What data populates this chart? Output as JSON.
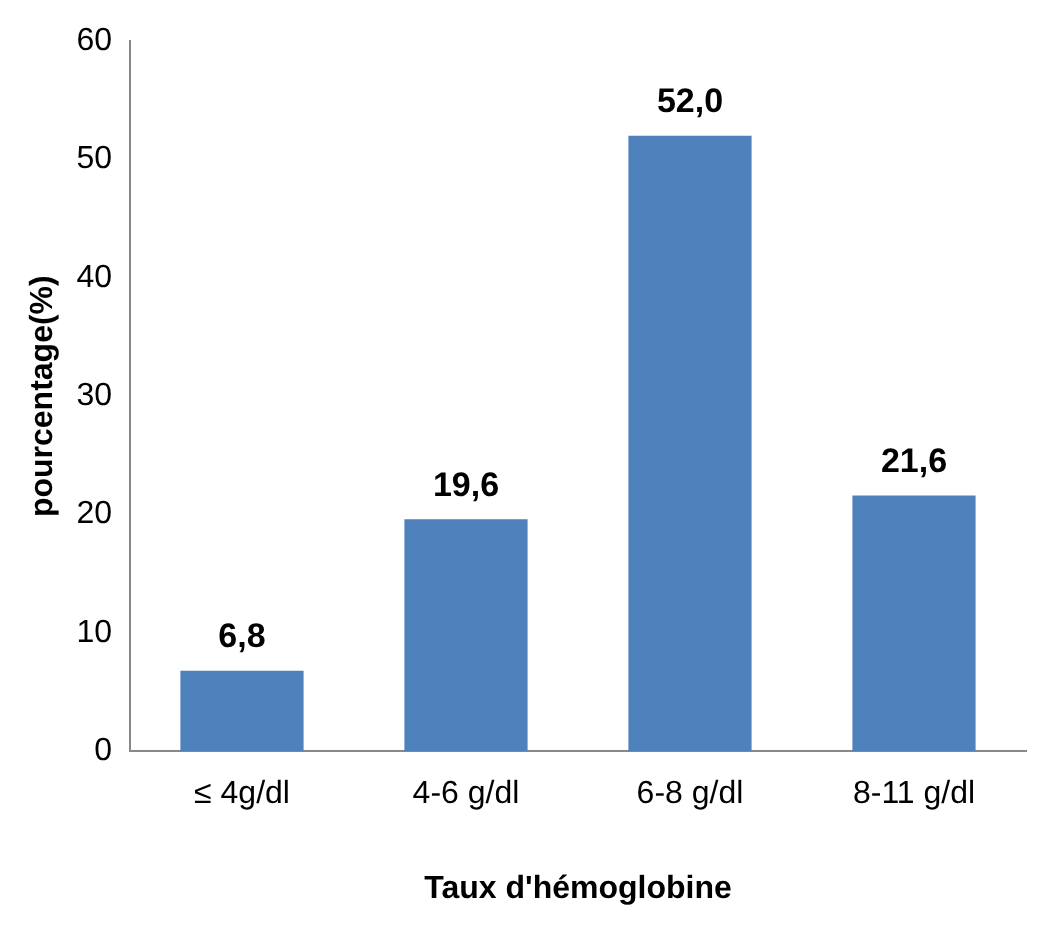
{
  "chart_data": {
    "type": "bar",
    "xlabel": "Taux d'hémoglobine",
    "ylabel": "pourcentage(%)",
    "categories": [
      "≤ 4g/dl",
      "4-6 g/dl",
      "6-8 g/dl",
      "8-11 g/dl"
    ],
    "values": [
      6.8,
      19.6,
      52.0,
      21.6
    ],
    "value_labels": [
      "6,8",
      "19,6",
      "52,0",
      "21,6"
    ],
    "color": "#4f81bd",
    "ylim": [
      0,
      60
    ],
    "yticks": [
      0,
      10,
      20,
      30,
      40,
      50,
      60
    ],
    "grid": false,
    "legend": false
  }
}
